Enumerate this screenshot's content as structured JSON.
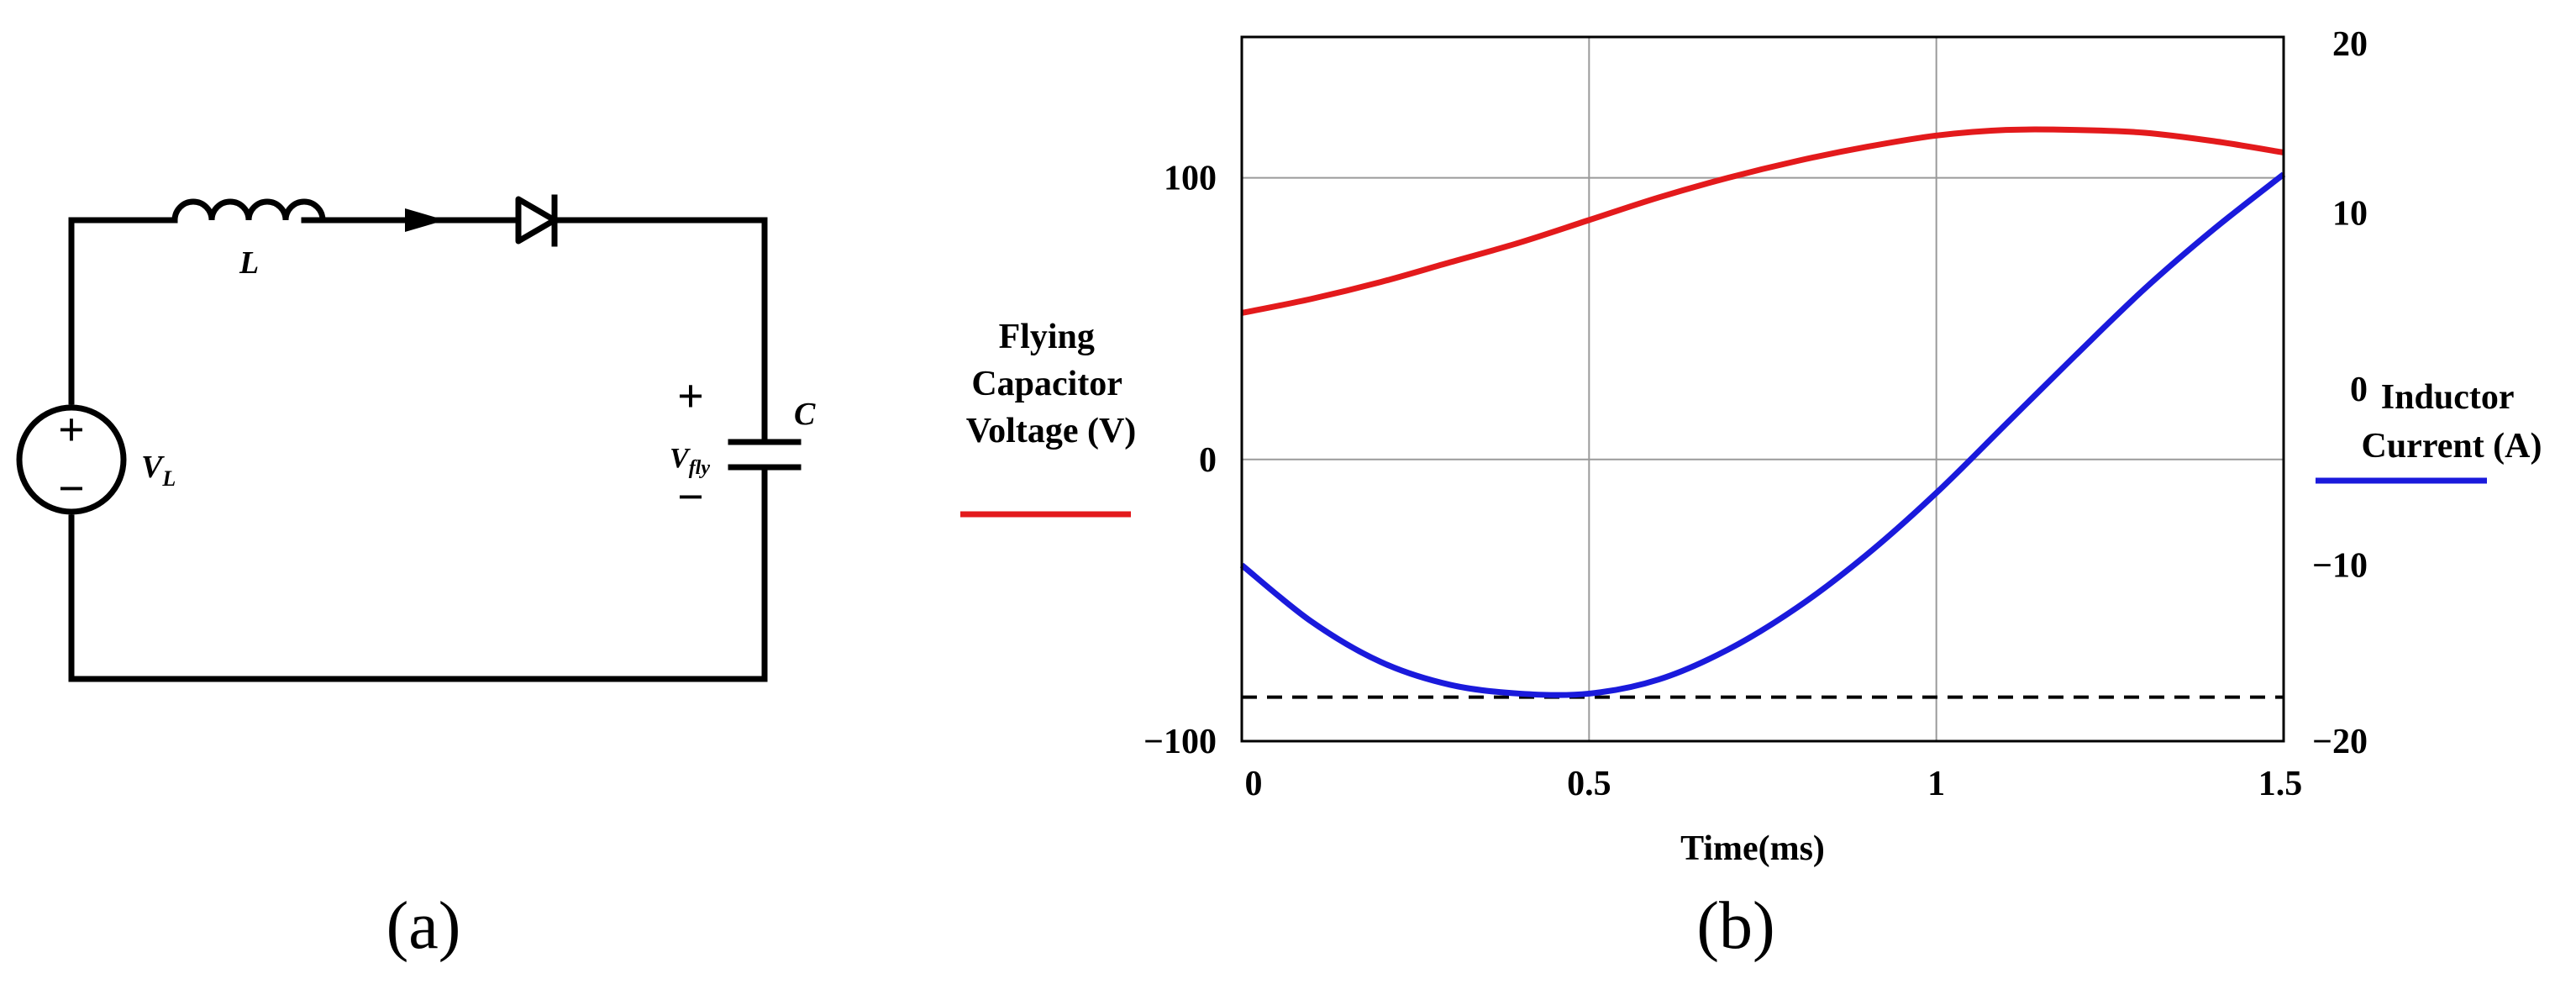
{
  "panel_a": {
    "label": "(a)",
    "inductor_label": "L",
    "source_label_main": "V",
    "source_label_sub": "L",
    "source_plus": "+",
    "source_minus": "−",
    "capacitor_label": "C",
    "vfly_label_main": "V",
    "vfly_label_sub": "fly",
    "vfly_plus": "+",
    "vfly_minus": "−"
  },
  "panel_b": {
    "label": "(b)"
  },
  "chart_data": {
    "type": "line",
    "title": "",
    "xlabel": "Time(ms)",
    "xlim": [
      0,
      1.5
    ],
    "x_ticks": [
      "0",
      "0.5",
      "1",
      "1.5"
    ],
    "x_tick_values": [
      0,
      0.5,
      1,
      1.5
    ],
    "left_axis": {
      "label_lines": [
        "Flying",
        "Capacitor",
        "Voltage (V)"
      ],
      "ylim": [
        -100,
        150
      ],
      "ticks": [
        "100",
        "0",
        "−100"
      ],
      "tick_values": [
        100,
        0,
        -100
      ]
    },
    "right_axis": {
      "label_lines": [
        "Inductor",
        "Current (A)"
      ],
      "ylim": [
        -20,
        20
      ],
      "ticks": [
        "20",
        "10",
        "0",
        "−10",
        "−20"
      ],
      "tick_values": [
        20,
        10,
        0,
        -10,
        -20
      ]
    },
    "grid": true,
    "series": [
      {
        "name": "Flying Capacitor Voltage (V)",
        "axis": "left",
        "color": "#e31a1c",
        "x": [
          0,
          0.1,
          0.2,
          0.3,
          0.4,
          0.5,
          0.6,
          0.7,
          0.8,
          0.9,
          1.0,
          1.1,
          1.2,
          1.3,
          1.4,
          1.5
        ],
        "values": [
          52,
          57,
          63,
          70,
          77,
          85,
          93,
          100,
          106,
          111,
          115,
          117,
          117,
          116,
          113,
          109
        ]
      },
      {
        "name": "Inductor Current (A)",
        "axis": "right",
        "color": "#1a1adc",
        "x": [
          0,
          0.1,
          0.2,
          0.3,
          0.4,
          0.5,
          0.6,
          0.7,
          0.8,
          0.9,
          1.0,
          1.1,
          1.2,
          1.3,
          1.4,
          1.5
        ],
        "values": [
          -10,
          -13.2,
          -15.5,
          -16.8,
          -17.3,
          -17.3,
          -16.5,
          -14.8,
          -12.4,
          -9.4,
          -5.9,
          -2.0,
          1.9,
          5.7,
          9.1,
          12.2
        ]
      }
    ],
    "reference_line": {
      "axis": "right",
      "value": -17.5,
      "style": "dashed",
      "color": "#000000"
    }
  }
}
